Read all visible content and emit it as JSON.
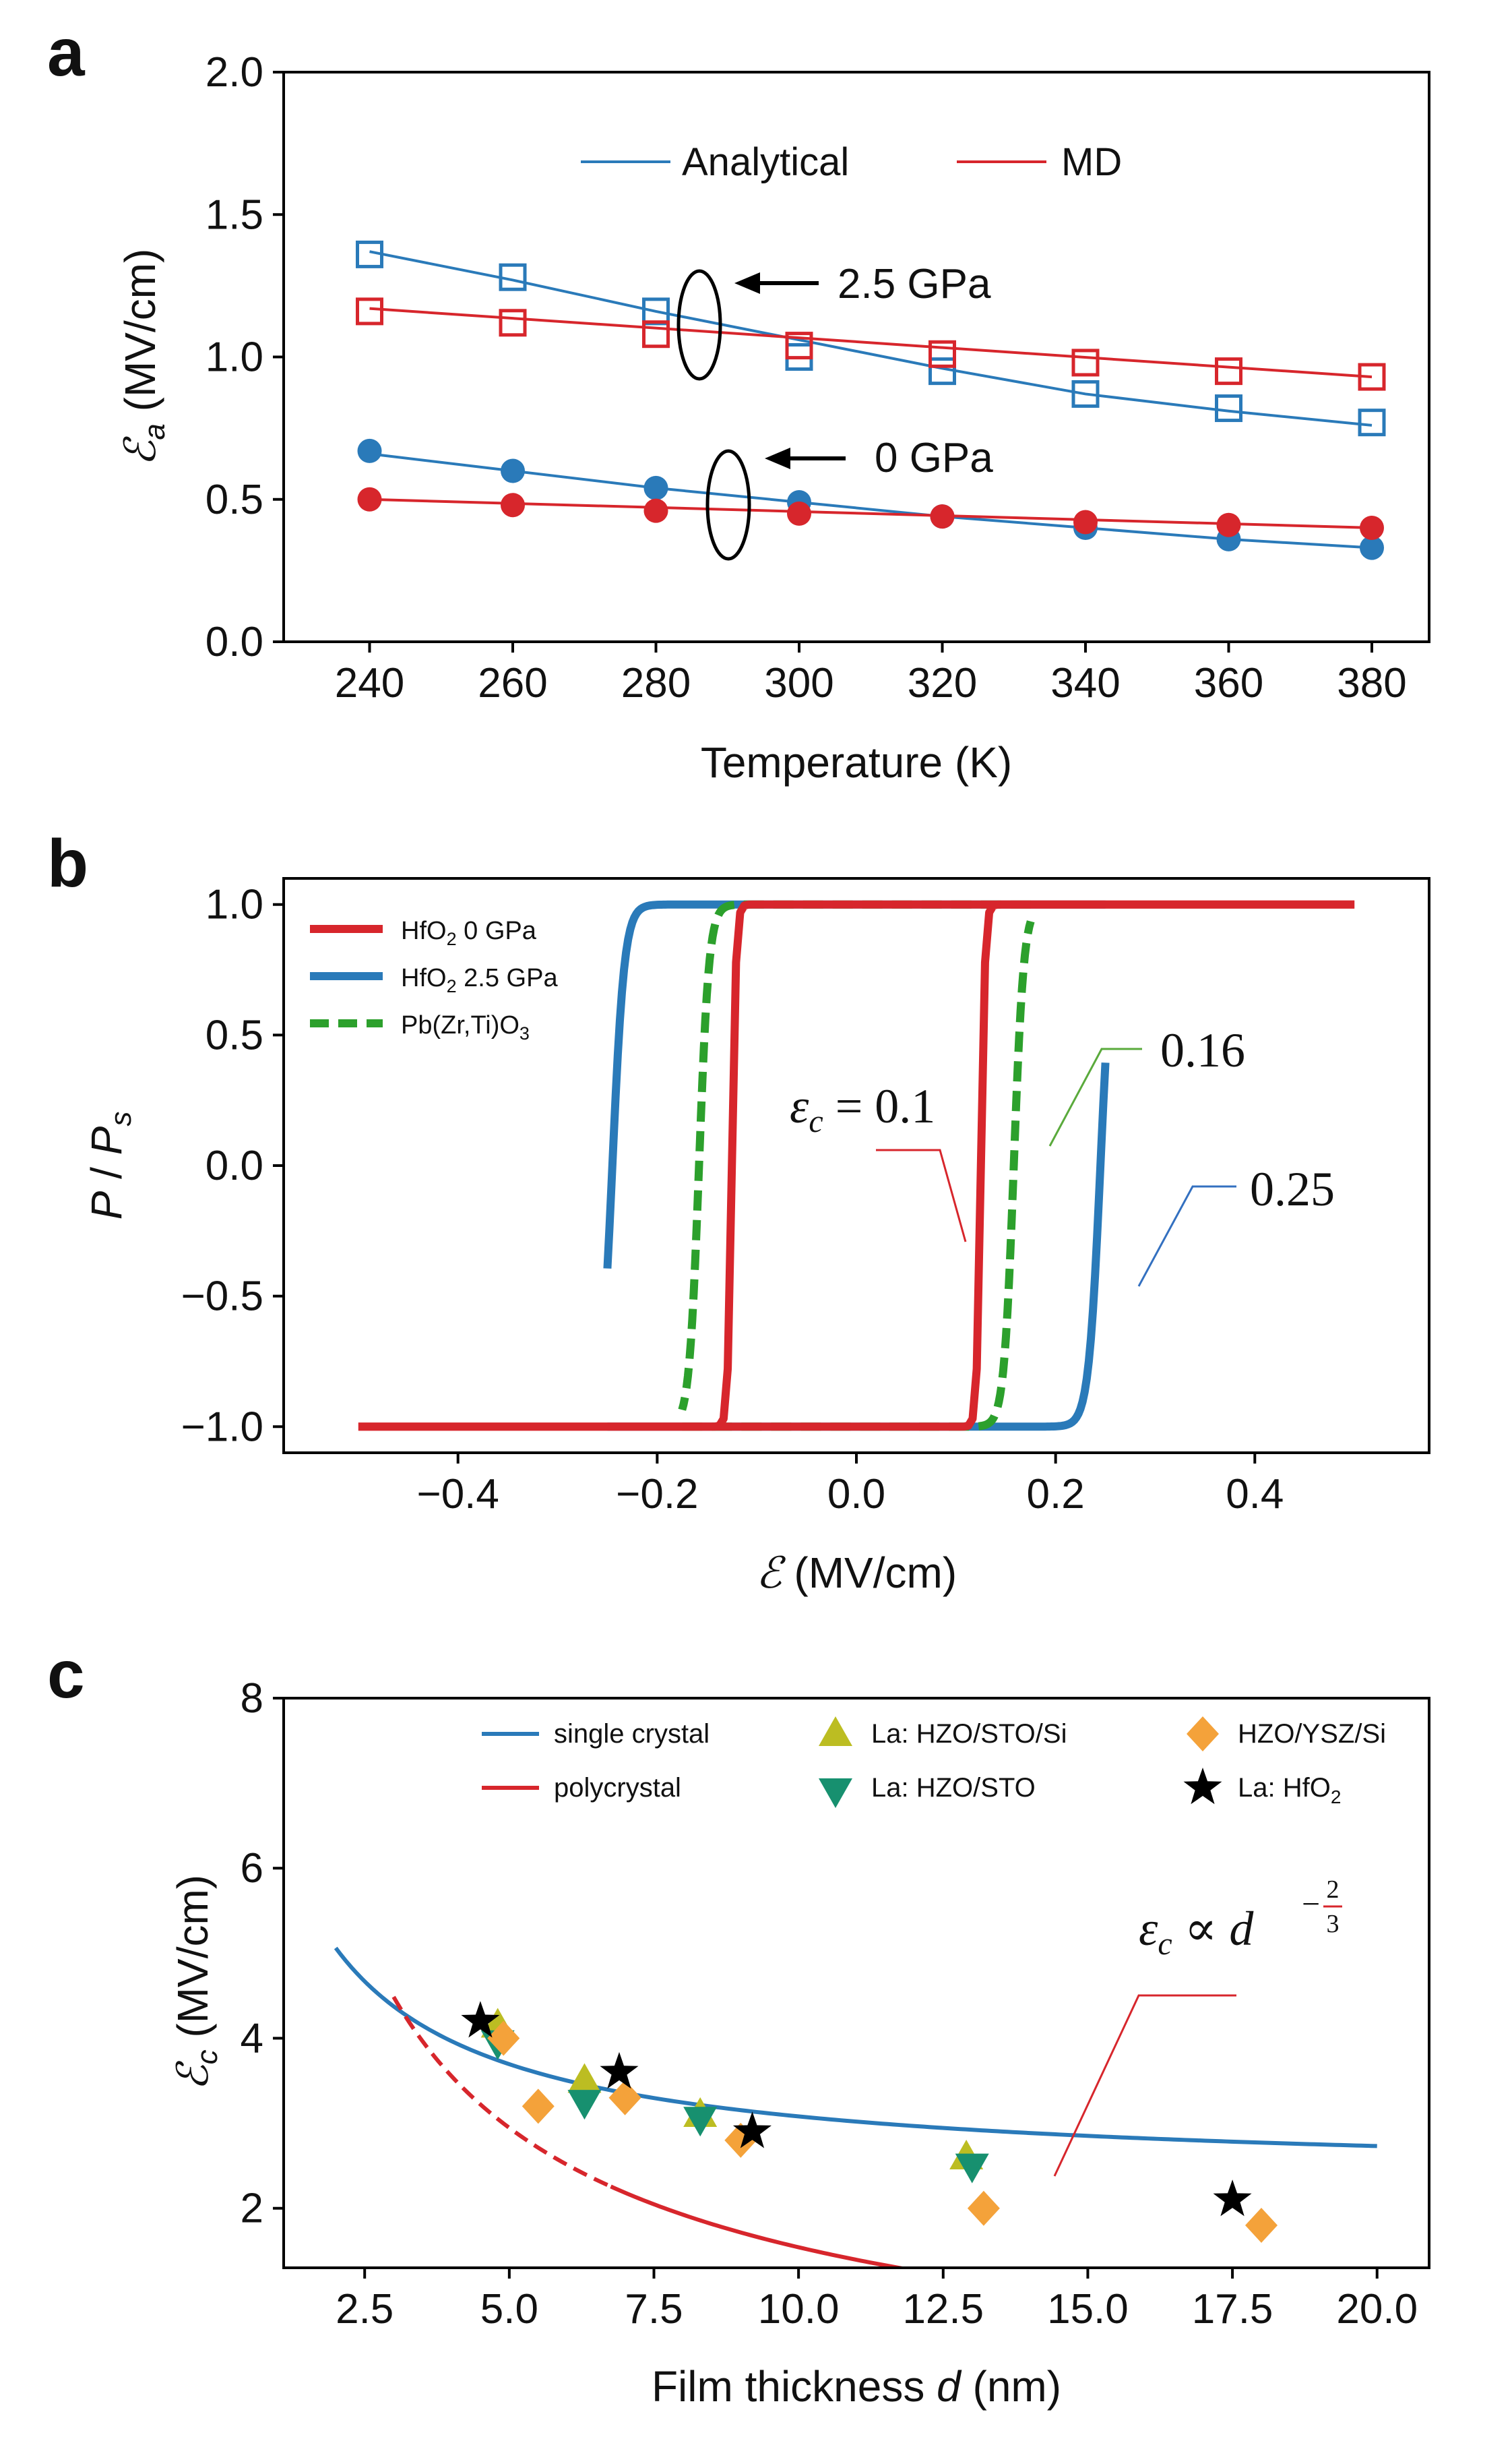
{
  "colors": {
    "blue": "#2a7ab9",
    "red": "#d7262c",
    "green": "#2ca02c",
    "olive": "#bcbd22",
    "teal": "#17906f",
    "orange": "#f4a23a",
    "black": "#000000",
    "green_annot": "#5aaa3c",
    "blue_annot": "#3370c0"
  },
  "chart_data": [
    {
      "panel": "a",
      "type": "scatter",
      "xlabel": "Temperature (K)",
      "ylabel_symbol": "ℰ",
      "ylabel_sub": "a",
      "ylabel_unit": " (MV/cm)",
      "xlim": [
        228,
        388
      ],
      "ylim": [
        0.0,
        2.0
      ],
      "xticks": [
        240,
        260,
        280,
        300,
        320,
        340,
        360,
        380
      ],
      "yticks": [
        0.0,
        0.5,
        1.0,
        1.5,
        2.0
      ],
      "ytick_labels": [
        "0.0",
        "0.5",
        "1.0",
        "1.5",
        "2.0"
      ],
      "legend": [
        {
          "label": "Analytical",
          "color": "blue"
        },
        {
          "label": "MD",
          "color": "red"
        }
      ],
      "series": [
        {
          "name": "Analytical 2.5 GPa (line)",
          "marker": "none",
          "color": "blue",
          "x": [
            240,
            260,
            280,
            300,
            320,
            340,
            360,
            380
          ],
          "y": [
            1.37,
            1.27,
            1.16,
            1.06,
            0.96,
            0.87,
            0.81,
            0.76
          ]
        },
        {
          "name": "Analytical 2.5 GPa",
          "marker": "open-square",
          "color": "blue",
          "x": [
            240,
            260,
            280,
            300,
            320,
            340,
            360,
            380
          ],
          "y": [
            1.36,
            1.28,
            1.16,
            1.0,
            0.95,
            0.87,
            0.82,
            0.77
          ]
        },
        {
          "name": "MD 2.5 GPa (line)",
          "marker": "none",
          "color": "red",
          "x": [
            240,
            380
          ],
          "y": [
            1.17,
            0.93
          ]
        },
        {
          "name": "MD 2.5 GPa",
          "marker": "open-square",
          "color": "red",
          "x": [
            240,
            260,
            280,
            300,
            320,
            340,
            360,
            380
          ],
          "y": [
            1.16,
            1.12,
            1.08,
            1.04,
            1.01,
            0.98,
            0.95,
            0.93
          ]
        },
        {
          "name": "Analytical 0 GPa (line)",
          "marker": "none",
          "color": "blue",
          "x": [
            240,
            260,
            280,
            300,
            320,
            340,
            360,
            380
          ],
          "y": [
            0.66,
            0.6,
            0.54,
            0.49,
            0.44,
            0.4,
            0.36,
            0.33
          ]
        },
        {
          "name": "Analytical 0 GPa",
          "marker": "filled-circle",
          "color": "blue",
          "x": [
            240,
            260,
            280,
            300,
            320,
            340,
            360,
            380
          ],
          "y": [
            0.67,
            0.6,
            0.54,
            0.49,
            0.44,
            0.4,
            0.36,
            0.33
          ]
        },
        {
          "name": "MD 0 GPa (line)",
          "marker": "none",
          "color": "red",
          "x": [
            240,
            380
          ],
          "y": [
            0.5,
            0.4
          ]
        },
        {
          "name": "MD 0 GPa",
          "marker": "filled-circle",
          "color": "red",
          "x": [
            240,
            260,
            280,
            300,
            320,
            340,
            360,
            380
          ],
          "y": [
            0.5,
            0.48,
            0.46,
            0.45,
            0.44,
            0.42,
            0.41,
            0.4
          ]
        }
      ],
      "annotations": [
        {
          "text": "2.5 GPa",
          "ellipse_center": [
            289,
            1.12
          ]
        },
        {
          "text": "0 GPa",
          "ellipse_center": [
            293,
            0.49
          ]
        }
      ]
    },
    {
      "panel": "b",
      "type": "line",
      "xlabel_symbol": "ℰ",
      "xlabel_unit": " (MV/cm)",
      "ylabel_main": "P",
      "ylabel_sep": " / ",
      "ylabel_sub_base": "P",
      "ylabel_sub": "s",
      "xlim": [
        -0.575,
        0.575
      ],
      "ylim": [
        -1.1,
        1.1
      ],
      "xticks": [
        -0.4,
        -0.2,
        0.0,
        0.2,
        0.4
      ],
      "xtick_labels": [
        "−0.4",
        "−0.2",
        "0.0",
        "0.2",
        "0.4"
      ],
      "yticks": [
        -1.0,
        -0.5,
        0.0,
        0.5,
        1.0
      ],
      "ytick_labels": [
        "−1.0",
        "−0.5",
        "0.0",
        "0.5",
        "1.0"
      ],
      "series": [
        {
          "name": "HfO2 2.5 GPa",
          "legend_base": "HfO",
          "legend_sub": "2",
          "legend_rest": " 2.5 GPa",
          "color": "blue",
          "style": "solid",
          "coercive_field": 0.25,
          "x_range": [
            -0.25,
            0.25
          ]
        },
        {
          "name": "Pb(Zr,Ti)O3",
          "legend_base": "Pb(Zr,Ti)O",
          "legend_sub": "3",
          "legend_rest": "",
          "color": "green",
          "style": "dashed",
          "coercive_field": 0.16,
          "x_range": [
            -0.175,
            0.175
          ]
        },
        {
          "name": "HfO2 0 GPa",
          "legend_base": "HfO",
          "legend_sub": "2",
          "legend_rest": " 0 GPa",
          "color": "red",
          "style": "solid",
          "coercive_field": 0.1,
          "x_range": [
            -0.5,
            0.5
          ]
        }
      ],
      "annotations": [
        {
          "text": "0.16",
          "color": "green_annot"
        },
        {
          "text": "0.25",
          "color": "blue_annot"
        },
        {
          "sym": "ε",
          "sub": "c",
          "rest": " = 0.1",
          "color": "red"
        }
      ]
    },
    {
      "panel": "c",
      "type": "scatter",
      "xlabel_pre": "Film thickness ",
      "xlabel_var": "d",
      "xlabel_post": " (nm)",
      "ylabel_symbol": "ℰ",
      "ylabel_sub": "c",
      "ylabel_unit": " (MV/cm)",
      "xlim": [
        1.1,
        20.9
      ],
      "ylim": [
        1.3,
        8.0
      ],
      "xticks": [
        2.5,
        5.0,
        7.5,
        10.0,
        12.5,
        15.0,
        17.5,
        20.0
      ],
      "xtick_labels": [
        "2.5",
        "5.0",
        "7.5",
        "10.0",
        "12.5",
        "15.0",
        "17.5",
        "20.0"
      ],
      "yticks": [
        2,
        4,
        6,
        8
      ],
      "series": [
        {
          "name": "single crystal",
          "type": "line",
          "color": "blue",
          "x_range": [
            2,
            20
          ]
        },
        {
          "name": "polycrystal",
          "type": "line",
          "color": "red",
          "law": "E = 8.7 * d^(-2/3)",
          "x_range": [
            3,
            20
          ],
          "dashed_until": 6.8
        },
        {
          "name": "La: HZO/STO/Si",
          "marker": "triangle-up",
          "color": "olive",
          "x": [
            4.8,
            6.3,
            8.3,
            12.9
          ],
          "y": [
            4.15,
            3.5,
            3.1,
            2.6
          ]
        },
        {
          "name": "La: HZO/STO",
          "marker": "triangle-down",
          "color": "teal",
          "x": [
            4.8,
            6.3,
            8.3,
            13.0
          ],
          "y": [
            3.95,
            3.25,
            3.05,
            2.5
          ]
        },
        {
          "name": "HZO/YSZ/Si",
          "marker": "diamond",
          "color": "orange",
          "x": [
            4.9,
            5.5,
            7.0,
            9.0,
            13.2,
            18.0
          ],
          "y": [
            4.0,
            3.2,
            3.3,
            2.8,
            2.0,
            1.8
          ]
        },
        {
          "name": "La: HfO2",
          "marker": "star",
          "color": "black",
          "x": [
            4.5,
            6.9,
            9.2,
            17.5
          ],
          "y": [
            4.2,
            3.6,
            2.9,
            2.1
          ]
        }
      ],
      "legend": [
        {
          "label": "single crystal",
          "kind": "line",
          "color": "blue"
        },
        {
          "label": "polycrystal",
          "kind": "line",
          "color": "red"
        },
        {
          "label": "La: HZO/STO/Si",
          "kind": "triangle-up",
          "color": "olive"
        },
        {
          "label": "La: HZO/STO",
          "kind": "triangle-down",
          "color": "teal"
        },
        {
          "label": "HZO/YSZ/Si",
          "kind": "diamond",
          "color": "orange"
        },
        {
          "label_base": "La: HfO",
          "label_sub": "2",
          "kind": "star",
          "color": "black"
        }
      ],
      "annotation": {
        "sym": "ε",
        "sub": "c",
        "rel": " ∝ ",
        "var": "d",
        "exp_num": "2",
        "exp_den": "3",
        "minus": "−",
        "color": "red"
      }
    }
  ],
  "panel_labels": [
    "a",
    "b",
    "c"
  ]
}
